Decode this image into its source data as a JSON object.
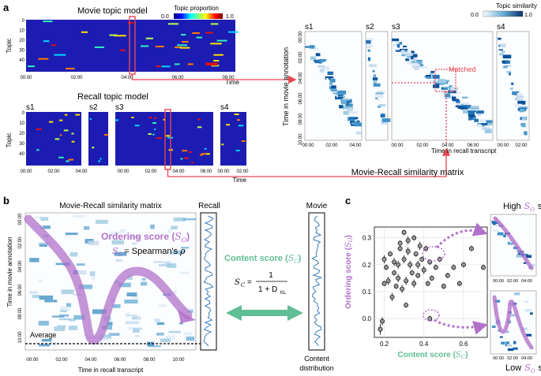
{
  "panel_a": {
    "label": "a",
    "movie_title": "Movie topic model",
    "recall_title": "Recall topic model",
    "proportion_cbar": {
      "label": "Topic proportion",
      "min": "0.0",
      "max": "1.0"
    },
    "similarity_cbar": {
      "label": "Topic similarity",
      "min": "0.0",
      "max": "1.0"
    },
    "topic_ylabel": "Topic",
    "time_xlabel": "Time",
    "topic_ticks": [
      "0",
      "10",
      "20",
      "30",
      "40"
    ],
    "movie_x_ticks": [
      "00:00",
      "02:00",
      "04:00",
      "06:00",
      "08:00"
    ],
    "recall_segments": [
      "s1",
      "s2",
      "s3",
      "s4"
    ],
    "recall_x_ticks_s1": [
      "00:00",
      "02:00",
      "04:00"
    ],
    "recall_x_ticks_s3": [
      "00:00",
      "02:00",
      "04:00",
      "06:00"
    ],
    "recall_x_ticks_s4": [
      "00:00",
      "02:00"
    ],
    "sim_ylabel": "Time in movie annotation",
    "sim_xlabel": "Time in recall transcript",
    "sim_y_ticks": [
      "00:00",
      "02:00",
      "04:00",
      "06:00",
      "08:00",
      "10:00"
    ],
    "sim_x_ticks_s1": [
      "00:00",
      "02:00",
      "04:00"
    ],
    "sim_x_ticks_s3": [
      "00:00",
      "02:00",
      "04:00",
      "06:00"
    ],
    "sim_x_ticks_s4": [
      "00:00",
      "02:00"
    ],
    "matched": "Matched",
    "caption": "Movie-Recall similarity matrix"
  },
  "panel_b": {
    "label": "b",
    "matrix_title": "Movie-Recall similarity matrix",
    "recall_label": "Recall",
    "movie_label": "Movie",
    "y_label": "Time in movie annotation",
    "x_label": "Time in recall transcript",
    "y_ticks": [
      "00:00",
      "02:00",
      "04:00",
      "06:00",
      "08:00",
      "10:00"
    ],
    "x_ticks": [
      "00:00",
      "02:00",
      "04:00",
      "06:00",
      "08:00",
      "10:00"
    ],
    "ordering_text": "Ordering score (",
    "ordering_sym": "S",
    "ordering_sub": "O",
    "ordering_close": ")",
    "spearman_lhs": "= Spearman's",
    "spearman_rho": "ρ",
    "content_text": "Content score (",
    "content_close": ")",
    "content_sub": "C",
    "formula_num": "1",
    "formula_den": "1 + D",
    "formula_den_sub": "KL",
    "average_label": "Average",
    "content_dist": [
      "Content",
      "distribution"
    ]
  },
  "panel_c": {
    "label": "c",
    "high_label": "High",
    "low_label": "Low",
    "subject_word": "subject",
    "sim_ticks": [
      "00:00",
      "02:00",
      "04:00"
    ]
  },
  "chart_data": {
    "type": "scatter",
    "title": "",
    "xlabel": "Content score (S_C)",
    "ylabel": "Ordering score (S_O)",
    "xlim": [
      0.15,
      0.72
    ],
    "ylim": [
      -0.07,
      0.34
    ],
    "x_ticks": [
      "0.2",
      "0.4",
      "0.6"
    ],
    "y_ticks": [
      "0.0",
      "0.1",
      "0.2",
      "0.3"
    ],
    "x_tick_values": [
      0.2,
      0.4,
      0.6
    ],
    "y_tick_values": [
      0.0,
      0.1,
      0.2,
      0.3
    ],
    "grid": true,
    "points": [
      {
        "x": 0.18,
        "y": -0.04,
        "ex": 0,
        "ey": 0.02
      },
      {
        "x": 0.19,
        "y": -0.01,
        "ex": 0,
        "ey": 0.015
      },
      {
        "x": 0.2,
        "y": 0.22,
        "ex": 0,
        "ey": 0.015
      },
      {
        "x": 0.21,
        "y": 0.19,
        "ex": 0,
        "ey": 0.01
      },
      {
        "x": 0.2,
        "y": 0.13,
        "ex": 0,
        "ey": 0.01
      },
      {
        "x": 0.23,
        "y": 0.24,
        "ex": 0,
        "ey": 0.01
      },
      {
        "x": 0.22,
        "y": 0.14,
        "ex": 0,
        "ey": 0.015
      },
      {
        "x": 0.24,
        "y": 0.08,
        "ex": 0,
        "ey": 0.015
      },
      {
        "x": 0.25,
        "y": 0.17,
        "ex": 0,
        "ey": 0.01
      },
      {
        "x": 0.25,
        "y": 0.21,
        "ex": 0,
        "ey": 0.015
      },
      {
        "x": 0.26,
        "y": 0.12,
        "ex": 0,
        "ey": 0.01
      },
      {
        "x": 0.27,
        "y": 0.2,
        "ex": 0,
        "ey": 0.015
      },
      {
        "x": 0.27,
        "y": 0.15,
        "ex": 0,
        "ey": 0.015
      },
      {
        "x": 0.28,
        "y": 0.28,
        "ex": 0,
        "ey": 0.01
      },
      {
        "x": 0.28,
        "y": 0.26,
        "ex": 0,
        "ey": 0.01
      },
      {
        "x": 0.29,
        "y": 0.11,
        "ex": 0,
        "ey": 0.015
      },
      {
        "x": 0.3,
        "y": 0.32,
        "ex": 0,
        "ey": 0.01
      },
      {
        "x": 0.3,
        "y": 0.22,
        "ex": 0,
        "ey": 0.015
      },
      {
        "x": 0.31,
        "y": 0.14,
        "ex": 0,
        "ey": 0.015
      },
      {
        "x": 0.31,
        "y": 0.05,
        "ex": 0,
        "ey": 0.01
      },
      {
        "x": 0.32,
        "y": 0.29,
        "ex": 0,
        "ey": 0.015
      },
      {
        "x": 0.32,
        "y": 0.25,
        "ex": 0,
        "ey": 0.015
      },
      {
        "x": 0.33,
        "y": 0.2,
        "ex": 0,
        "ey": 0.015
      },
      {
        "x": 0.34,
        "y": 0.17,
        "ex": 0,
        "ey": 0.01
      },
      {
        "x": 0.35,
        "y": 0.3,
        "ex": 0,
        "ey": 0.01
      },
      {
        "x": 0.35,
        "y": 0.13,
        "ex": 0,
        "ey": 0.015
      },
      {
        "x": 0.36,
        "y": 0.24,
        "ex": 0,
        "ey": 0.01
      },
      {
        "x": 0.37,
        "y": 0.2,
        "ex": 0,
        "ey": 0.015
      },
      {
        "x": 0.37,
        "y": 0.16,
        "ex": 0,
        "ey": 0.01
      },
      {
        "x": 0.38,
        "y": 0.27,
        "ex": 0,
        "ey": 0.015
      },
      {
        "x": 0.39,
        "y": 0.22,
        "ex": 0,
        "ey": 0.01
      },
      {
        "x": 0.4,
        "y": 0.18,
        "ex": 0,
        "ey": 0.015
      },
      {
        "x": 0.41,
        "y": 0.26,
        "ex": 0,
        "ey": 0.01
      },
      {
        "x": 0.42,
        "y": 0.13,
        "ex": 0,
        "ey": 0.01
      },
      {
        "x": 0.43,
        "y": 0.21,
        "ex": 0,
        "ey": 0.01
      },
      {
        "x": 0.44,
        "y": 0.15,
        "ex": 0,
        "ey": 0.01
      },
      {
        "x": 0.46,
        "y": 0.19,
        "ex": 0,
        "ey": 0.01
      },
      {
        "x": 0.48,
        "y": 0.22,
        "ex": 0,
        "ey": 0.01
      },
      {
        "x": 0.5,
        "y": 0.12,
        "ex": 0,
        "ey": 0.01
      },
      {
        "x": 0.52,
        "y": 0.16,
        "ex": 0,
        "ey": 0.01
      },
      {
        "x": 0.55,
        "y": 0.19,
        "ex": 0,
        "ey": 0.01
      },
      {
        "x": 0.58,
        "y": 0.13,
        "ex": 0,
        "ey": 0.01
      },
      {
        "x": 0.6,
        "y": 0.2,
        "ex": 0,
        "ey": 0.01
      },
      {
        "x": 0.64,
        "y": 0.26,
        "ex": 0,
        "ey": 0.01
      },
      {
        "x": 0.7,
        "y": 0.19,
        "ex": 0,
        "ey": 0.01
      },
      {
        "x": 0.43,
        "y": 0.0,
        "ex": 0,
        "ey": 0.01
      }
    ],
    "highlighted": {
      "high": {
        "x": 0.44,
        "y": 0.22
      },
      "low": {
        "x": 0.43,
        "y": 0.0
      }
    }
  },
  "colors": {
    "accent_purple": "#b171c9",
    "content_green": "#5fbe95",
    "highlight_red": "#e8464f",
    "matrix_blue": "#08306b",
    "topic_bg": "#1c1cb2"
  }
}
